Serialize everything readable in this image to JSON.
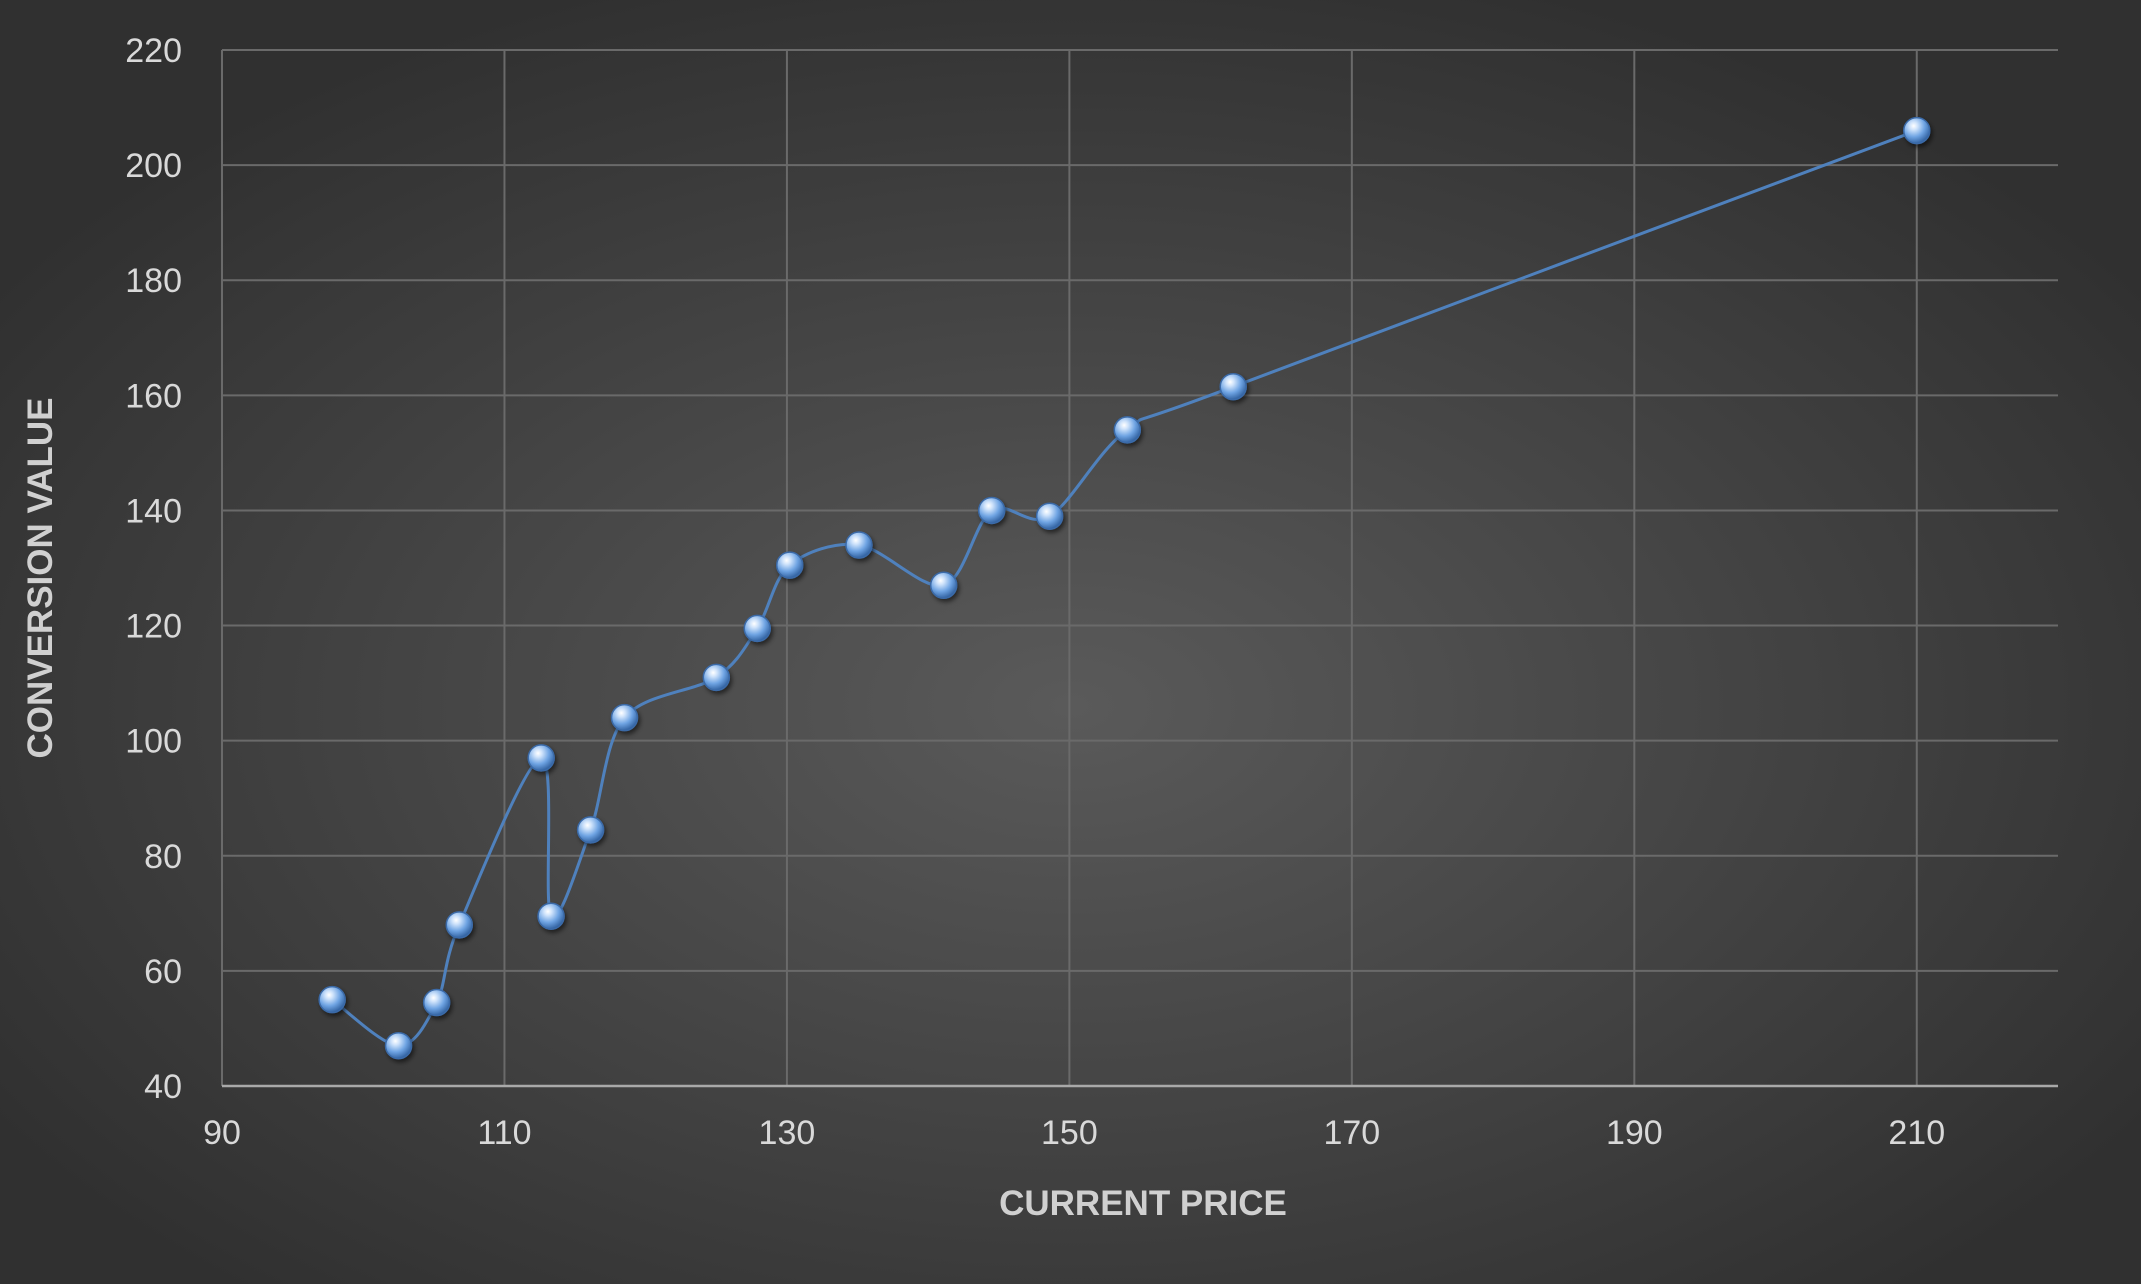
{
  "chart_data": {
    "type": "scatter",
    "xlabel": "CURRENT PRICE",
    "ylabel": "CONVERSION VALUE",
    "xlim": [
      90,
      220
    ],
    "ylim": [
      40,
      220
    ],
    "xticks": [
      90,
      110,
      130,
      150,
      170,
      190,
      210
    ],
    "yticks": [
      40,
      60,
      80,
      100,
      120,
      140,
      160,
      180,
      200,
      220
    ],
    "grid": true,
    "smooth_line": true,
    "colors": {
      "line": "#4f81bd",
      "marker": "#7fb2ee"
    },
    "series": [
      {
        "x": [
          97.8,
          102.5,
          105.2,
          106.8,
          112.6,
          113.3,
          116.1,
          118.5,
          125.0,
          127.9,
          130.2,
          135.1,
          141.1,
          144.5,
          148.6,
          154.1,
          161.6,
          210.0
        ],
        "y": [
          55,
          47,
          54.5,
          68,
          97,
          69.5,
          84.5,
          104,
          111,
          119.5,
          130.5,
          134,
          127,
          140,
          139,
          154,
          161.5,
          206
        ]
      }
    ]
  }
}
